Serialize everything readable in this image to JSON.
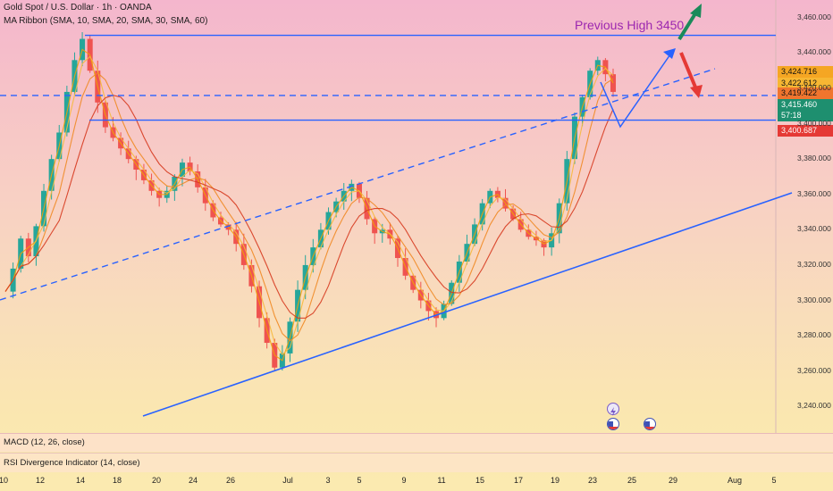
{
  "header": {
    "symbol_line": "Gold Spot / U.S. Dollar · 1h · OANDA",
    "indicator_line": "MA Ribbon (SMA, 10, SMA, 20, SMA, 30, SMA, 60)"
  },
  "annotation": {
    "text": "Previous High 3450",
    "color": "#9c27b0"
  },
  "panes": {
    "macd": "MACD (12, 26, close)",
    "rsi": "RSI Divergence Indicator (14, close)"
  },
  "price_tags": [
    {
      "label": "3,424.716",
      "bg": "#f5a623"
    },
    {
      "label": "3,422.612",
      "bg": "#f7b733"
    },
    {
      "label": "3,419.422",
      "bg": "#f0752e"
    },
    {
      "label": "3,415.460",
      "bg": "#1e8f6f",
      "countdown": "57:18"
    },
    {
      "label": "3,400.687",
      "bg": "#e53935"
    }
  ],
  "colors": {
    "line": "#2962ff",
    "up_arrow": "#1b8a5a",
    "down_arrow": "#e53935",
    "ma10": "#f2a007",
    "ma20": "#f6b93b",
    "ma30": "#f08a24",
    "ma60": "#d63a1f"
  },
  "chart_data": {
    "type": "line",
    "title": "Gold Spot / U.S. Dollar · 1h · OANDA",
    "xlabel": "",
    "ylabel": "",
    "ylim": [
      3225,
      3470
    ],
    "y_ticks": [
      3240,
      3260,
      3280,
      3300,
      3320,
      3340,
      3360,
      3380,
      3400,
      3420,
      3440,
      3460
    ],
    "y_tick_labels": [
      "3,240.000",
      "3,260.000",
      "3,280.000",
      "3,300.000",
      "3,320.000",
      "3,340.000",
      "3,360.000",
      "3,380.000",
      "3,400.000",
      "3,420.000",
      "3,440.000",
      "3,460.000"
    ],
    "x_tick_labels": [
      "10",
      "12",
      "14",
      "18",
      "20",
      "24",
      "26",
      "Jul",
      "3",
      "5",
      "9",
      "11",
      "15",
      "17",
      "19",
      "23",
      "25",
      "29",
      "Aug",
      "5"
    ],
    "series": [
      {
        "values": [
          3305,
          3318,
          3335,
          3325,
          3342,
          3362,
          3380,
          3395,
          3418,
          3436,
          3448,
          3430,
          3412,
          3398,
          3392,
          3386,
          3380,
          3374,
          3368,
          3362,
          3358,
          3362,
          3370,
          3378,
          3373,
          3364,
          3355,
          3347,
          3343,
          3340,
          3332,
          3320,
          3308,
          3290,
          3276,
          3262,
          3270,
          3288,
          3306,
          3320,
          3330,
          3340,
          3350,
          3356,
          3362,
          3366,
          3358,
          3346,
          3338,
          3340,
          3335,
          3324,
          3314,
          3306,
          3300,
          3294,
          3290,
          3298,
          3310,
          3322,
          3332,
          3343,
          3355,
          3362,
          3358,
          3352,
          3346,
          3340,
          3336,
          3334,
          3330,
          3338,
          3355,
          3380,
          3404,
          3415,
          3430,
          3436,
          3428,
          3418
        ]
      }
    ],
    "ma_ribbon": [
      "SMA 10",
      "SMA 20",
      "SMA 30",
      "SMA 60"
    ],
    "levels": {
      "previous_high": 3450,
      "dashed_level": 3416,
      "resistance": 3402
    }
  }
}
